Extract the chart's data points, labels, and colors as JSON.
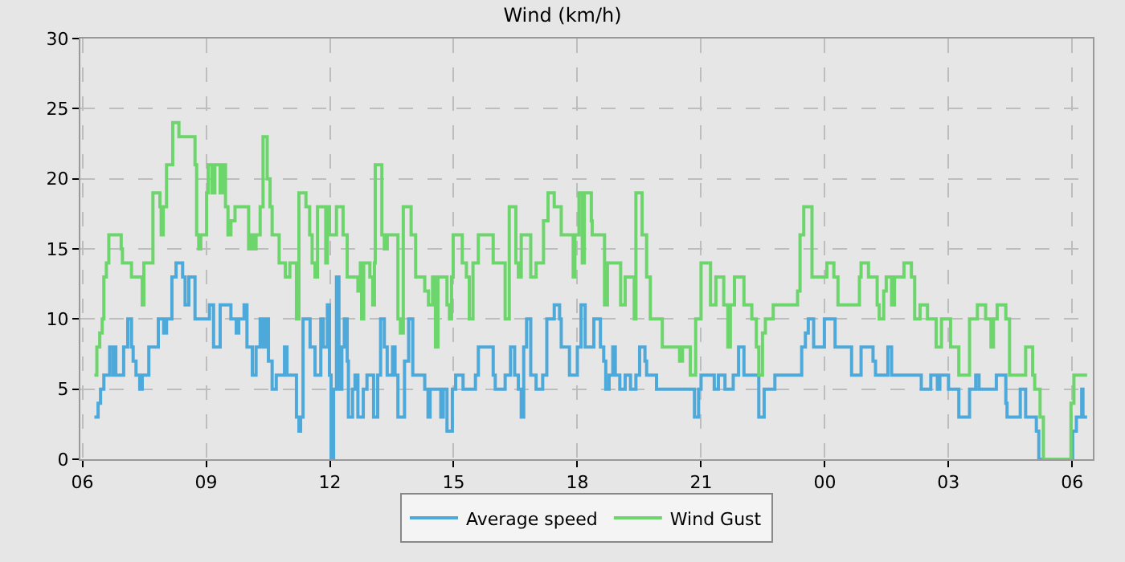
{
  "chart_data": {
    "type": "step",
    "title": "Wind (km/h)",
    "xlim": [
      5.95,
      30.5
    ],
    "xticks": [
      {
        "value": 6,
        "label": "06"
      },
      {
        "value": 9,
        "label": "09"
      },
      {
        "value": 12,
        "label": "12"
      },
      {
        "value": 15,
        "label": "15"
      },
      {
        "value": 18,
        "label": "18"
      },
      {
        "value": 21,
        "label": "21"
      },
      {
        "value": 24,
        "label": "00"
      },
      {
        "value": 27,
        "label": "03"
      },
      {
        "value": 30,
        "label": "06"
      }
    ],
    "ylim": [
      0,
      30
    ],
    "yticks": [
      0,
      5,
      10,
      15,
      20,
      25,
      30
    ],
    "grid": true,
    "legend": "bottom",
    "line_style": "solid",
    "marker": "none",
    "series": [
      {
        "name": "Average speed",
        "color": "#4ea9db",
        "x": [
          6.29,
          6.38,
          6.44,
          6.52,
          6.66,
          6.74,
          6.77,
          6.81,
          7.0,
          7.1,
          7.19,
          7.23,
          7.3,
          7.39,
          7.45,
          7.61,
          7.84,
          7.97,
          8.04,
          8.17,
          8.27,
          8.43,
          8.49,
          8.58,
          8.73,
          9.08,
          9.18,
          9.34,
          9.6,
          9.73,
          9.79,
          9.92,
          9.99,
          10.12,
          10.21,
          10.31,
          10.38,
          10.44,
          10.51,
          10.6,
          10.7,
          10.9,
          10.96,
          11.19,
          11.25,
          11.29,
          11.35,
          11.52,
          11.64,
          11.78,
          11.84,
          11.94,
          11.99,
          12.03,
          12.09,
          12.16,
          12.22,
          12.29,
          12.35,
          12.42,
          12.45,
          12.55,
          12.61,
          12.68,
          12.81,
          12.9,
          13.06,
          13.16,
          13.23,
          13.32,
          13.39,
          13.52,
          13.58,
          13.65,
          13.81,
          13.91,
          14.01,
          14.3,
          14.38,
          14.43,
          14.69,
          14.75,
          14.84,
          14.97,
          15.05,
          15.23,
          15.53,
          15.6,
          15.96,
          16.01,
          16.25,
          16.38,
          16.48,
          16.57,
          16.64,
          16.7,
          16.77,
          16.87,
          17.0,
          17.16,
          17.26,
          17.44,
          17.57,
          17.61,
          17.81,
          18.0,
          18.09,
          18.19,
          18.4,
          18.56,
          18.64,
          18.69,
          18.77,
          18.86,
          18.92,
          19.03,
          19.16,
          19.29,
          19.42,
          19.51,
          19.64,
          19.68,
          19.92,
          20.84,
          20.94,
          21.0,
          21.32,
          21.42,
          21.58,
          21.78,
          21.91,
          22.04,
          22.4,
          22.53,
          22.79,
          23.44,
          23.53,
          23.6,
          23.73,
          23.99,
          24.25,
          24.65,
          24.88,
          25.17,
          25.23,
          25.53,
          25.62,
          26.34,
          26.57,
          26.73,
          26.79,
          27.0,
          27.25,
          27.51,
          27.66,
          27.74,
          28.16,
          28.39,
          28.42,
          28.74,
          28.87,
          29.13,
          29.19,
          30.01,
          30.1,
          30.23,
          30.26,
          30.36
        ],
        "values": [
          3,
          4,
          5,
          6,
          8,
          6,
          8,
          6,
          8,
          10,
          8,
          7,
          6,
          5,
          6,
          8,
          10,
          9,
          10,
          13,
          14,
          13,
          11,
          13,
          10,
          11,
          8,
          11,
          10,
          9,
          10,
          11,
          8,
          6,
          8,
          10,
          8,
          10,
          7,
          5,
          6,
          8,
          6,
          3,
          2,
          3,
          10,
          8,
          6,
          10,
          8,
          11,
          6,
          0,
          5,
          13,
          5,
          8,
          10,
          7,
          3,
          5,
          6,
          3,
          5,
          6,
          3,
          6,
          10,
          8,
          6,
          8,
          6,
          3,
          7,
          10,
          6,
          5,
          3,
          5,
          3,
          5,
          2,
          5,
          6,
          5,
          6,
          8,
          6,
          5,
          6,
          8,
          6,
          5,
          3,
          8,
          10,
          6,
          5,
          6,
          10,
          11,
          10,
          8,
          6,
          8,
          11,
          8,
          10,
          8,
          7,
          5,
          6,
          8,
          6,
          5,
          6,
          5,
          6,
          8,
          7,
          6,
          5,
          3,
          5,
          6,
          5,
          6,
          5,
          6,
          8,
          6,
          3,
          5,
          6,
          8,
          9,
          10,
          8,
          10,
          8,
          6,
          8,
          7,
          6,
          8,
          6,
          5,
          6,
          5,
          6,
          5,
          3,
          5,
          6,
          5,
          6,
          4,
          3,
          5,
          3,
          2,
          0,
          2,
          3,
          5,
          3,
          3
        ]
      },
      {
        "name": "Wind Gust",
        "color": "#6cd66c",
        "x": [
          6.29,
          6.35,
          6.42,
          6.48,
          6.52,
          6.58,
          6.64,
          6.94,
          6.97,
          7.19,
          7.45,
          7.49,
          7.71,
          7.88,
          7.91,
          7.96,
          8.04,
          8.19,
          8.34,
          8.73,
          8.77,
          8.82,
          8.87,
          9.01,
          9.05,
          9.14,
          9.21,
          9.34,
          9.4,
          9.47,
          9.53,
          9.6,
          9.7,
          10.03,
          10.08,
          10.14,
          10.21,
          10.31,
          10.38,
          10.48,
          10.55,
          10.6,
          10.77,
          10.92,
          11.03,
          11.19,
          11.25,
          11.42,
          11.51,
          11.57,
          11.64,
          11.7,
          11.9,
          11.94,
          11.99,
          12.16,
          12.32,
          12.42,
          12.68,
          12.74,
          12.77,
          12.82,
          12.97,
          13.04,
          13.08,
          13.1,
          13.26,
          13.32,
          13.39,
          13.65,
          13.71,
          13.78,
          13.97,
          14.08,
          14.3,
          14.39,
          14.49,
          14.56,
          14.62,
          14.84,
          14.9,
          14.95,
          14.99,
          15.21,
          15.31,
          15.38,
          15.47,
          15.6,
          15.96,
          16.25,
          16.35,
          16.51,
          16.57,
          16.64,
          16.87,
          17.0,
          17.18,
          17.29,
          17.44,
          17.61,
          17.9,
          17.94,
          18.04,
          18.12,
          18.17,
          18.34,
          18.36,
          18.66,
          18.73,
          19.05,
          19.16,
          19.38,
          19.42,
          19.57,
          19.68,
          19.77,
          20.06,
          20.48,
          20.55,
          20.74,
          20.87,
          21.0,
          21.23,
          21.36,
          21.55,
          21.65,
          21.71,
          21.81,
          22.04,
          22.23,
          22.34,
          22.4,
          22.49,
          22.56,
          22.75,
          23.34,
          23.4,
          23.49,
          23.69,
          24.05,
          24.22,
          24.32,
          24.84,
          24.88,
          25.06,
          25.27,
          25.32,
          25.43,
          25.49,
          25.62,
          25.69,
          25.92,
          26.1,
          26.18,
          26.31,
          26.49,
          26.7,
          26.83,
          27.05,
          27.25,
          27.51,
          27.7,
          27.9,
          28.03,
          28.09,
          28.18,
          28.39,
          28.48,
          28.87,
          29.04,
          29.09,
          29.22,
          29.3,
          29.97,
          30.04,
          30.36
        ],
        "values": [
          6,
          8,
          9,
          10,
          13,
          14,
          16,
          15,
          14,
          13,
          11,
          14,
          19,
          18,
          16,
          18,
          21,
          24,
          23,
          21,
          16,
          15,
          16,
          19,
          21,
          19,
          21,
          19,
          21,
          18,
          16,
          17,
          18,
          15,
          16,
          15,
          16,
          18,
          23,
          20,
          18,
          16,
          14,
          13,
          14,
          10,
          19,
          18,
          16,
          14,
          13,
          18,
          14,
          18,
          16,
          18,
          16,
          13,
          12,
          14,
          10,
          14,
          13,
          11,
          14,
          21,
          16,
          15,
          16,
          10,
          9,
          18,
          16,
          13,
          12,
          11,
          13,
          8,
          13,
          11,
          10,
          13,
          16,
          14,
          13,
          10,
          14,
          16,
          14,
          10,
          18,
          14,
          13,
          16,
          13,
          14,
          17,
          19,
          18,
          16,
          13,
          16,
          19,
          14,
          19,
          17,
          16,
          11,
          14,
          11,
          13,
          10,
          19,
          16,
          13,
          10,
          8,
          7,
          8,
          6,
          10,
          14,
          11,
          13,
          11,
          8,
          11,
          13,
          11,
          10,
          8,
          6,
          9,
          10,
          11,
          12,
          16,
          18,
          13,
          14,
          13,
          11,
          13,
          14,
          13,
          11,
          10,
          12,
          13,
          11,
          13,
          14,
          13,
          10,
          11,
          10,
          8,
          10,
          8,
          6,
          10,
          11,
          10,
          8,
          10,
          11,
          10,
          6,
          8,
          6,
          5,
          3,
          0,
          4,
          6,
          6
        ]
      }
    ]
  }
}
